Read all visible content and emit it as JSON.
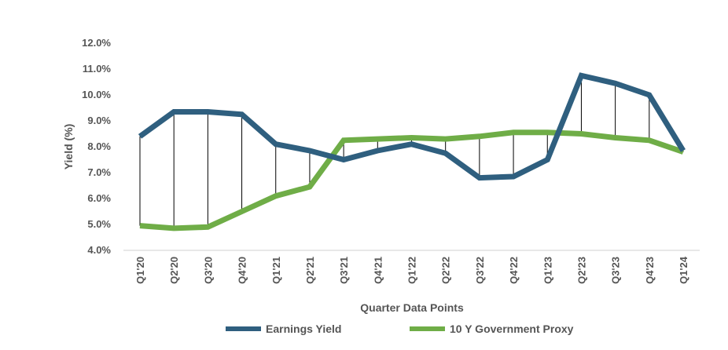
{
  "chart_data": {
    "type": "line",
    "title": "",
    "xlabel": "Quarter Data Points",
    "ylabel": "Yield (%)",
    "ylim": [
      4.0,
      12.0
    ],
    "yticks": [
      "4.0%",
      "5.0%",
      "6.0%",
      "7.0%",
      "8.0%",
      "9.0%",
      "10.0%",
      "11.0%",
      "12.0%"
    ],
    "categories": [
      "Q1'20",
      "Q2'20",
      "Q3'20",
      "Q4'20",
      "Q1'21",
      "Q2'21",
      "Q3'21",
      "Q4'21",
      "Q1'22",
      "Q2'22",
      "Q3'22",
      "Q4'22",
      "Q1'23",
      "Q2'23",
      "Q3'23",
      "Q4'23",
      "Q1'24"
    ],
    "series": [
      {
        "name": "Earnings Yield",
        "color": "#2F5F7F",
        "values": [
          8.4,
          9.35,
          9.35,
          9.25,
          8.1,
          7.85,
          7.5,
          7.85,
          8.1,
          7.75,
          6.8,
          6.85,
          7.5,
          10.75,
          10.45,
          10.0,
          7.85
        ]
      },
      {
        "name": "10 Y Government Proxy",
        "color": "#6FAD47",
        "values": [
          4.95,
          4.85,
          4.9,
          5.5,
          6.1,
          6.45,
          8.25,
          8.3,
          8.35,
          8.3,
          8.4,
          8.55,
          8.55,
          8.5,
          8.35,
          8.25,
          7.8
        ]
      }
    ],
    "gridlines": false,
    "drop_lines": true,
    "legend_position": "bottom"
  }
}
